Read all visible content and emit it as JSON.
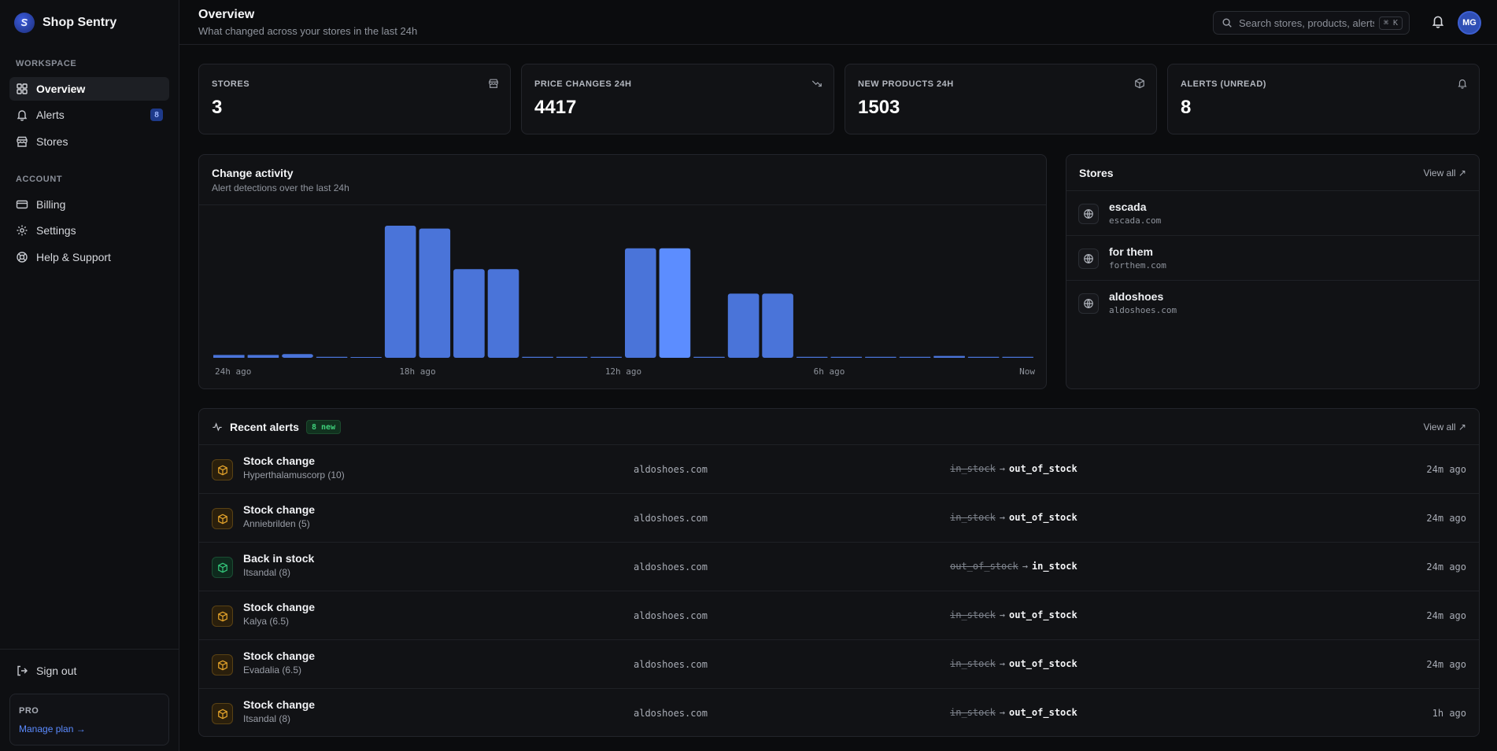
{
  "sidebar": {
    "brand": "Shop Sentry",
    "workspace_label": "WORKSPACE",
    "account_label": "ACCOUNT",
    "items": [
      {
        "label": "Overview",
        "icon": "grid-icon"
      },
      {
        "label": "Alerts",
        "icon": "bell-icon",
        "badge": "8"
      },
      {
        "label": "Stores",
        "icon": "store-icon"
      },
      {
        "label": "Billing",
        "icon": "credit-card-icon"
      },
      {
        "label": "Settings",
        "icon": "gear-icon"
      },
      {
        "label": "Help & Support",
        "icon": "lifebuoy-icon"
      }
    ],
    "sign_out": "Sign out",
    "plan": {
      "label": "PRO",
      "link": "Manage plan →"
    }
  },
  "header": {
    "title": "Overview",
    "subtitle": "What changed across your stores in the last 24h",
    "search_placeholder": "Search stores, products, alerts",
    "shortcut": "⌘ K",
    "avatar_initials": "MG"
  },
  "stats": [
    {
      "label": "STORES",
      "value": "3",
      "icon": "store-icon"
    },
    {
      "label": "PRICE CHANGES 24H",
      "value": "4417",
      "icon": "trend-down-icon"
    },
    {
      "label": "NEW PRODUCTS 24H",
      "value": "1503",
      "icon": "package-icon"
    },
    {
      "label": "ALERTS (UNREAD)",
      "value": "8",
      "icon": "bell-icon"
    }
  ],
  "chart_panel": {
    "title": "Change activity",
    "subtitle": "Alert detections over the last 24h"
  },
  "chart_data": {
    "type": "bar",
    "title": "Change activity",
    "x_tick_labels": [
      "24h ago",
      "18h ago",
      "12h ago",
      "6h ago",
      "Now"
    ],
    "values": [
      3,
      3,
      4,
      1,
      0,
      140,
      137,
      94,
      94,
      1,
      1,
      1,
      116,
      116,
      1,
      68,
      68,
      1,
      1,
      1,
      1,
      2,
      1,
      1
    ],
    "highlight_index": 13,
    "ylim": [
      0,
      150
    ],
    "colors": {
      "bar": "#4a74d9",
      "highlight": "#5c8dff"
    },
    "grid": false,
    "legend": "none"
  },
  "stores_panel": {
    "title": "Stores",
    "view_all": "View all ↗",
    "items": [
      {
        "name": "escada",
        "domain": "escada.com"
      },
      {
        "name": "for them",
        "domain": "forthem.com"
      },
      {
        "name": "aldoshoes",
        "domain": "aldoshoes.com"
      }
    ]
  },
  "alerts_panel": {
    "title": "Recent alerts",
    "badge": "8 new",
    "view_all": "View all ↗",
    "rows": [
      {
        "kind": "stock",
        "title": "Stock change",
        "product": "Hyperthalamuscorp (10)",
        "store": "aldoshoes.com",
        "from": "in_stock",
        "to": "out_of_stock",
        "time": "24m ago"
      },
      {
        "kind": "stock",
        "title": "Stock change",
        "product": "Anniebrilden (5)",
        "store": "aldoshoes.com",
        "from": "in_stock",
        "to": "out_of_stock",
        "time": "24m ago"
      },
      {
        "kind": "back",
        "title": "Back in stock",
        "product": "Itsandal (8)",
        "store": "aldoshoes.com",
        "from": "out_of_stock",
        "to": "in_stock",
        "time": "24m ago"
      },
      {
        "kind": "stock",
        "title": "Stock change",
        "product": "Kalya (6.5)",
        "store": "aldoshoes.com",
        "from": "in_stock",
        "to": "out_of_stock",
        "time": "24m ago"
      },
      {
        "kind": "stock",
        "title": "Stock change",
        "product": "Evadalia (6.5)",
        "store": "aldoshoes.com",
        "from": "in_stock",
        "to": "out_of_stock",
        "time": "24m ago"
      },
      {
        "kind": "stock",
        "title": "Stock change",
        "product": "Itsandal (8)",
        "store": "aldoshoes.com",
        "from": "in_stock",
        "to": "out_of_stock",
        "time": "1h ago"
      }
    ]
  }
}
